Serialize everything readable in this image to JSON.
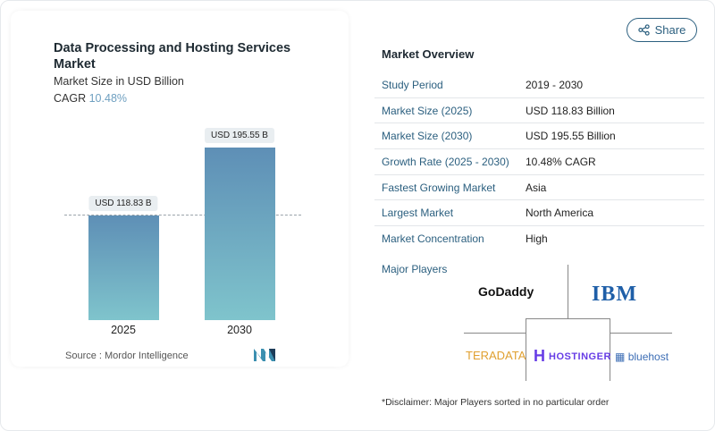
{
  "share_label": "Share",
  "chart_card": {
    "title": "Data Processing and Hosting Services Market",
    "subtitle": "Market Size in USD Billion",
    "cagr_label": "CAGR",
    "cagr_value": "10.48%",
    "source": "Source :  Mordor Intelligence"
  },
  "chart_data": {
    "type": "bar",
    "categories": [
      "2025",
      "2030"
    ],
    "values": [
      118.83,
      195.55
    ],
    "data_labels": [
      "USD 118.83 B",
      "USD 195.55 B"
    ],
    "title": "Data Processing and Hosting Services Market",
    "subtitle": "Market Size in USD Billion",
    "ylim": [
      0,
      197
    ],
    "grid": false,
    "colors": {
      "bar_top": "#5e8fb6",
      "bar_bottom": "#7fc4cc"
    }
  },
  "overview": {
    "title": "Market Overview",
    "rows": [
      {
        "label": "Study Period",
        "value": "2019 - 2030"
      },
      {
        "label": "Market Size (2025)",
        "value": "USD 118.83 Billion"
      },
      {
        "label": "Market Size (2030)",
        "value": "USD 195.55 Billion"
      },
      {
        "label": "Growth Rate (2025 - 2030)",
        "value": "10.48% CAGR"
      },
      {
        "label": "Fastest Growing Market",
        "value": "Asia"
      },
      {
        "label": "Largest Market",
        "value": "North America"
      },
      {
        "label": "Market Concentration",
        "value": "High"
      }
    ],
    "major_players_label": "Major Players",
    "players": [
      "GoDaddy",
      "IBM",
      "TERADATA",
      "HOSTINGER",
      "bluehost"
    ],
    "disclaimer": "*Disclaimer: Major Players sorted in no particular order"
  }
}
